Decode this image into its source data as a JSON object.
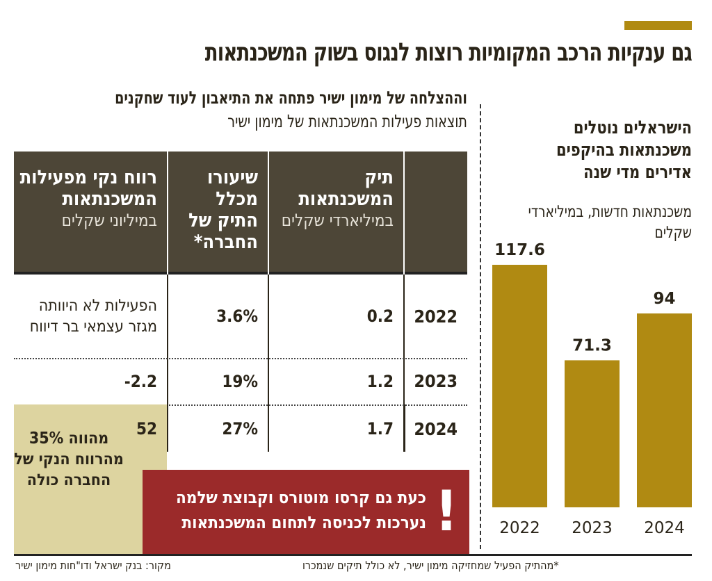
{
  "headline": "גם ענקיות הרכב המקומיות רוצות לנגוס בשוק המשכנתאות",
  "subheadline_bold": "וההצלחה של מימון ישיר פתחה את התיאבון לעוד שחקנים",
  "subheadline_regular": "תוצאות פעילות המשכנתאות של מימון ישיר",
  "table": {
    "headers": [
      {
        "title": "",
        "unit": ""
      },
      {
        "title": "תיק המשכנתאות",
        "unit": "במיליארדי שקלים"
      },
      {
        "title": "שיעורו מכלל התיק של החברה*",
        "unit": ""
      },
      {
        "title": "רווח נקי מפעילות המשכנתאות",
        "unit": "במיליוני שקלים"
      }
    ],
    "rows": [
      {
        "year": "2022",
        "portfolio": "0.2",
        "share": "3.6%",
        "profit": "הפעילות לא היוותה מגזר עצמאי בר דיווח"
      },
      {
        "year": "2023",
        "portfolio": "1.2",
        "share": "19%",
        "profit": "-2.2"
      },
      {
        "year": "2024",
        "portfolio": "1.7",
        "share": "27%",
        "profit": "52"
      }
    ],
    "profit_note": "מהווה 35% מהרווח הנקי של החברה כולה"
  },
  "callout": {
    "text": "כעת גם קרסו מוטורס וקבוצת שלמה נערכות לכניסה לתחום המשכנתאות",
    "icon": "exclamation-icon",
    "color": "#9b2a2a"
  },
  "footnote": "*מהתיק הפעיל שמחזיקה מימון ישיר, לא כולל תיקים שנמכרו",
  "source": "מקור: בנק ישראל ודו\"חות מימון ישיר",
  "chart_data": {
    "type": "bar",
    "title": "הישראלים נוטלים משכנתאות בהיקפים אדירים מדי שנה",
    "subtitle": "משכנתאות חדשות, במיליארדי שקלים",
    "categories": [
      "2022",
      "2023",
      "2024"
    ],
    "values": [
      117.6,
      71.3,
      94
    ],
    "labels": [
      "117.6",
      "71.3",
      "94"
    ],
    "ylim": [
      0,
      140
    ],
    "color": "#b08a12",
    "grid": false
  },
  "colors": {
    "accent": "#b08a12",
    "header_bg": "#4d4637",
    "highlight": "#ddd4a0"
  }
}
